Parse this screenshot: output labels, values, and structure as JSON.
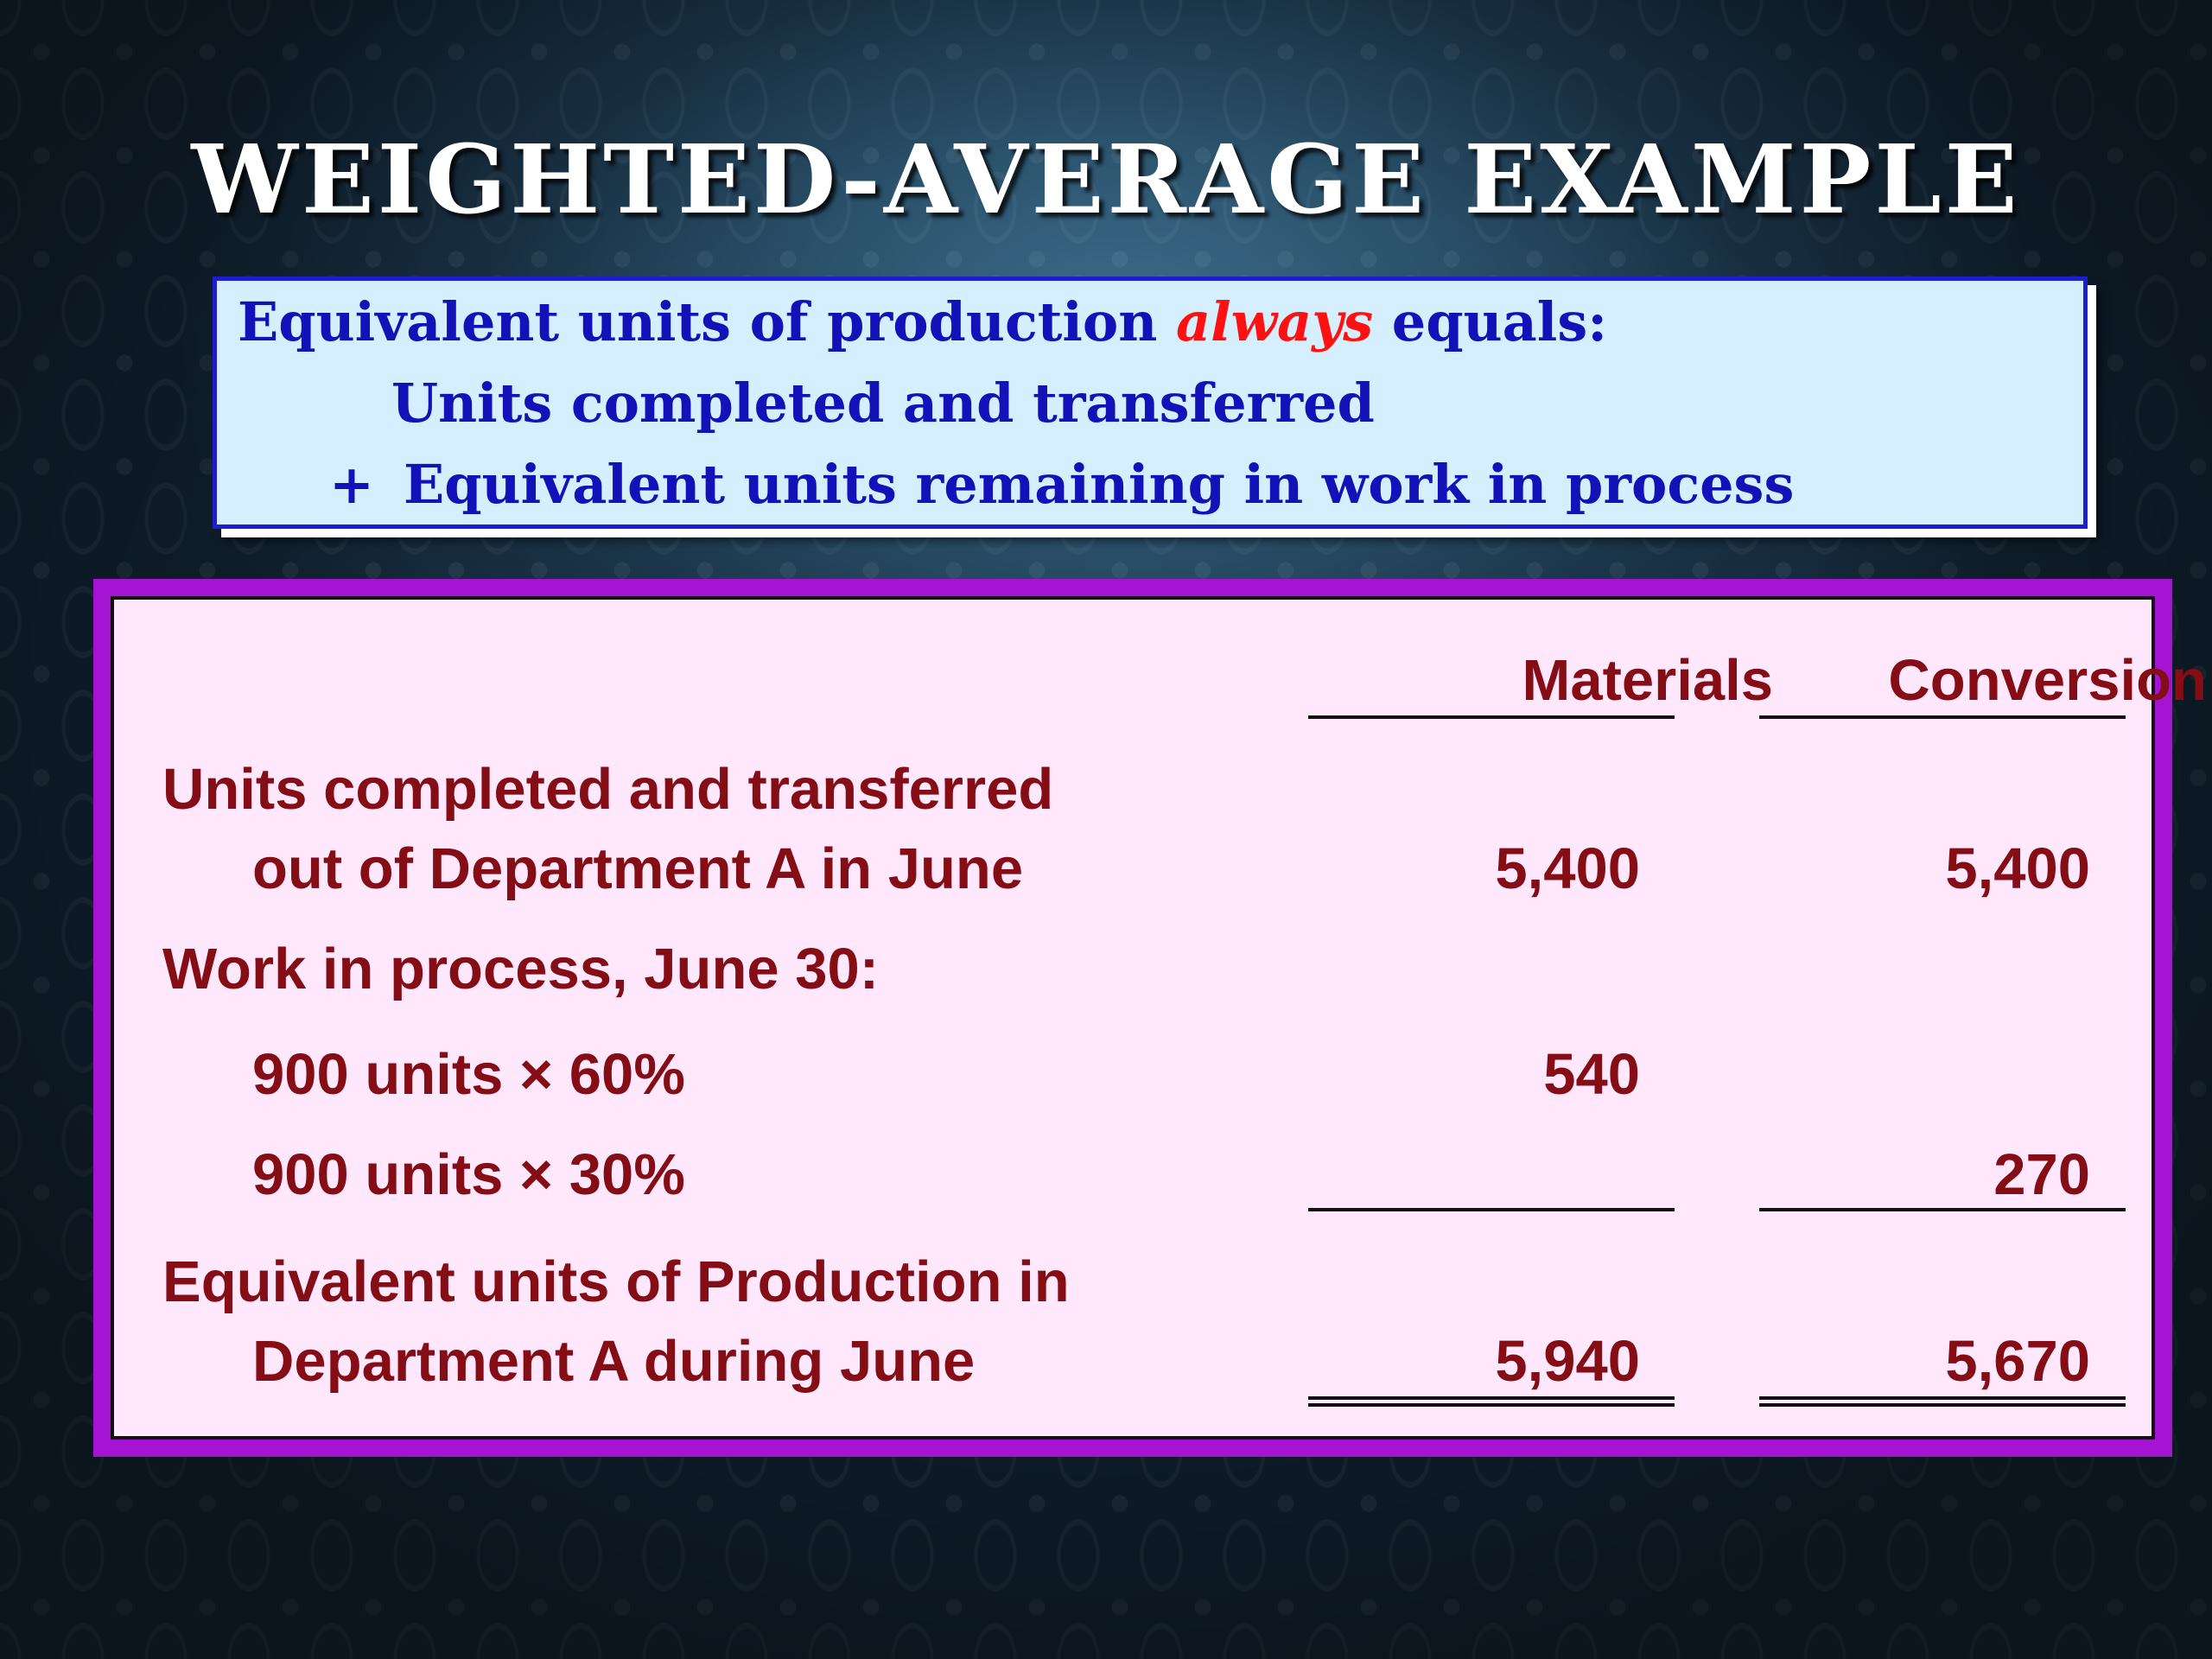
{
  "slide": {
    "title": "WEIGHTED-AVERAGE EXAMPLE"
  },
  "formula": {
    "line1_prefix": "Equivalent units of production",
    "line1_emphasis": "always",
    "line1_suffix": "equals:",
    "line2": "Units completed and transferred",
    "line3_operator": "+",
    "line3": "Equivalent units remaining in work in process"
  },
  "table": {
    "columns": [
      "Materials",
      "Conversion"
    ],
    "rows": [
      {
        "label_lines": [
          "Units completed and transferred",
          "out of Department A in June"
        ],
        "materials": "5,400",
        "conversion": "5,400"
      },
      {
        "label_lines": [
          "Work in process, June 30:"
        ],
        "materials": "",
        "conversion": ""
      },
      {
        "label_lines": [
          "900 units × 60%"
        ],
        "materials": "540",
        "conversion": ""
      },
      {
        "label_lines": [
          "900 units × 30%"
        ],
        "materials": "",
        "conversion": "270"
      },
      {
        "label_lines": [
          "Equivalent units of Production in",
          "Department A during June"
        ],
        "materials": "5,940",
        "conversion": "5,670"
      }
    ]
  },
  "colors": {
    "title_text": "#ffffff",
    "formula_text": "#1212b8",
    "formula_emphasis": "#ff1111",
    "formula_background": "#d5efff",
    "table_frame": "#a514d2",
    "table_background": "#ffe8fb",
    "table_text": "#850d15"
  }
}
